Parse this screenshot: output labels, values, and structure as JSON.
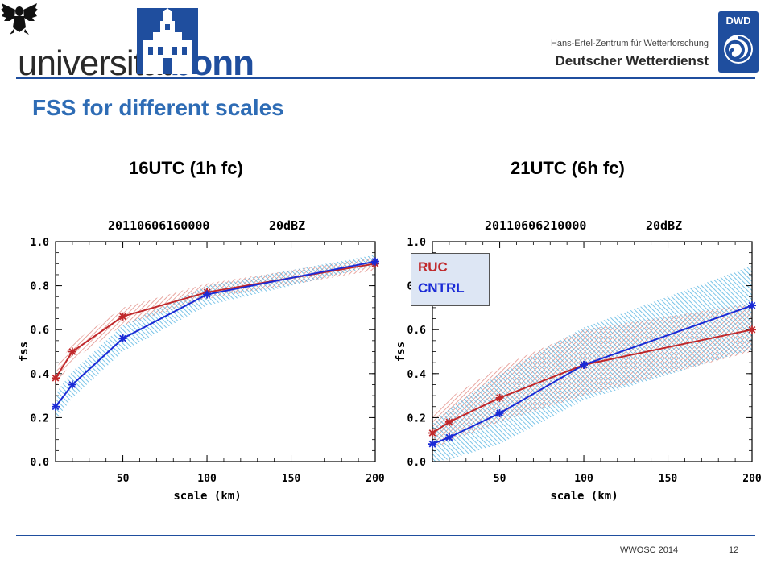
{
  "header": {
    "uni_logo_light": "universität",
    "uni_logo_bold": "bonn",
    "dwd_subtitle": "Hans-Ertel-Zentrum für Wetterforschung",
    "dwd_name": "Deutscher Wetterdienst",
    "dwd_badge": "DWD"
  },
  "slide": {
    "title": "FSS for different scales",
    "subtitle_left": "16UTC (1h fc)",
    "subtitle_right": "21UTC (6h fc)"
  },
  "legend": {
    "ruc": "RUC",
    "cntrl": "CNTRL"
  },
  "footer": {
    "event": "WWOSC 2014",
    "page": "12"
  },
  "colors": {
    "accent": "#1f4e9e",
    "title": "#2e6cb5",
    "ruc": "#c0282b",
    "cntrl": "#1a2ad6",
    "ruc_band": "#e0847c",
    "cntrl_band": "#48aee0"
  },
  "chart_data": [
    {
      "type": "line",
      "title_left": "20110606160000",
      "title_right": "20dBZ",
      "xlabel": "scale (km)",
      "ylabel": "fss",
      "xlim": [
        10,
        200
      ],
      "ylim": [
        0.0,
        1.0
      ],
      "x_ticks": [
        50,
        100,
        150,
        200
      ],
      "y_ticks": [
        "0.0",
        "0.2",
        "0.4",
        "0.6",
        "0.8",
        "1.0"
      ],
      "x": [
        10,
        20,
        50,
        100,
        200
      ],
      "series": [
        {
          "name": "RUC",
          "values": [
            0.38,
            0.5,
            0.66,
            0.77,
            0.9
          ],
          "band_low": [
            0.34,
            0.46,
            0.62,
            0.74,
            0.87
          ],
          "band_high": [
            0.42,
            0.54,
            0.7,
            0.81,
            0.93
          ]
        },
        {
          "name": "CNTRL",
          "values": [
            0.25,
            0.35,
            0.56,
            0.76,
            0.91
          ],
          "band_low": [
            0.19,
            0.29,
            0.5,
            0.71,
            0.89
          ],
          "band_high": [
            0.31,
            0.41,
            0.62,
            0.8,
            0.94
          ]
        }
      ]
    },
    {
      "type": "line",
      "title_left": "20110606210000",
      "title_right": "20dBZ",
      "xlabel": "scale (km)",
      "ylabel": "fss",
      "xlim": [
        10,
        200
      ],
      "ylim": [
        0.0,
        1.0
      ],
      "x_ticks": [
        50,
        100,
        150,
        200
      ],
      "y_ticks": [
        "0.0",
        "0.2",
        "0.4",
        "0.6",
        "0.8",
        "1.0"
      ],
      "x": [
        10,
        20,
        50,
        100,
        200
      ],
      "series": [
        {
          "name": "RUC",
          "values": [
            0.13,
            0.18,
            0.29,
            0.44,
            0.6
          ],
          "band_low": [
            0.06,
            0.09,
            0.18,
            0.3,
            0.5
          ],
          "band_high": [
            0.22,
            0.29,
            0.43,
            0.6,
            0.72
          ]
        },
        {
          "name": "CNTRL",
          "values": [
            0.08,
            0.11,
            0.22,
            0.44,
            0.71
          ],
          "band_low": [
            0.0,
            0.01,
            0.08,
            0.28,
            0.51
          ],
          "band_high": [
            0.17,
            0.24,
            0.4,
            0.61,
            0.89
          ]
        }
      ]
    }
  ]
}
